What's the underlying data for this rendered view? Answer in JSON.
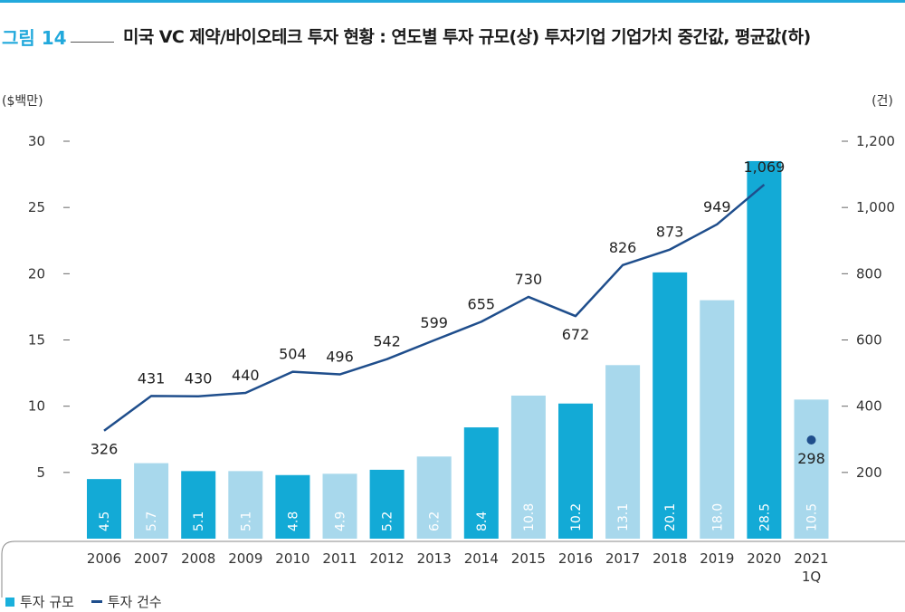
{
  "header": {
    "figure_label": "그림 14",
    "title": "미국 VC 제약/바이오테크 투자 현황 : 연도별 투자 규모(상) 투자기업 기업가치 중간값, 평균값(하)"
  },
  "legend": {
    "bar_label": "투자 규모",
    "line_label": "투자 건수"
  },
  "colors": {
    "accent": "#22a9dc",
    "bar_dark": "#13aad6",
    "bar_light": "#a8d8ec",
    "line": "#1f4e8c"
  },
  "chart_data": {
    "type": "bar",
    "categories": [
      "2006",
      "2007",
      "2008",
      "2009",
      "2010",
      "2011",
      "2012",
      "2013",
      "2014",
      "2015",
      "2016",
      "2017",
      "2018",
      "2019",
      "2020",
      "2021\n1Q"
    ],
    "series": [
      {
        "name": "투자 규모",
        "type": "bar",
        "axis": "left",
        "values": [
          4.5,
          5.7,
          5.1,
          5.1,
          4.8,
          4.9,
          5.2,
          6.2,
          8.4,
          10.8,
          10.2,
          13.1,
          20.1,
          18.0,
          28.5,
          10.5
        ],
        "labels": [
          "4.5",
          "5.7",
          "5.1",
          "5.1",
          "4.8",
          "4.9",
          "5.2",
          "6.2",
          "8.4",
          "10.8",
          "10.2",
          "13.1",
          "20.1",
          "18.0",
          "28.5",
          "10.5"
        ],
        "shades": [
          "dark",
          "light",
          "dark",
          "light",
          "dark",
          "light",
          "dark",
          "light",
          "dark",
          "light",
          "dark",
          "light",
          "dark",
          "light",
          "dark",
          "light"
        ]
      },
      {
        "name": "투자 건수",
        "type": "line",
        "axis": "right",
        "values": [
          326,
          431,
          430,
          440,
          504,
          496,
          542,
          599,
          655,
          730,
          672,
          826,
          873,
          949,
          1069,
          298
        ],
        "labels": [
          "326",
          "431",
          "430",
          "440",
          "504",
          "496",
          "542",
          "599",
          "655",
          "730",
          "672",
          "826",
          "873",
          "949",
          "1,069",
          "298"
        ],
        "connected_count": 15
      }
    ],
    "left_axis": {
      "unit": "($백만)",
      "ticks": [
        5,
        10,
        15,
        20,
        25,
        30
      ],
      "tick_labels": [
        "5",
        "10",
        "15",
        "20",
        "25",
        "30"
      ],
      "range": [
        0,
        30
      ]
    },
    "right_axis": {
      "unit": "(건)",
      "ticks": [
        200,
        400,
        600,
        800,
        1000,
        1200
      ],
      "tick_labels": [
        "200",
        "400",
        "600",
        "800",
        "1,000",
        "1,200"
      ],
      "range": [
        0,
        1200
      ]
    },
    "grid": false,
    "legend_position": "bottom-left"
  }
}
